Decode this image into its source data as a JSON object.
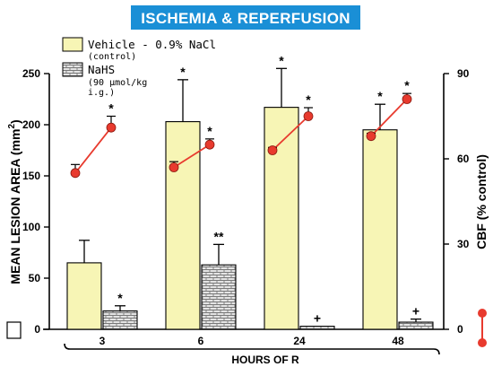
{
  "chart_data": {
    "type": "bar",
    "title": "ISCHEMIA & REPERFUSION",
    "xlabel": "HOURS OF R",
    "ylabel": "MEAN LESION AREA (mm²)",
    "y2label": "CBF (% control)",
    "categories": [
      "3",
      "6",
      "24",
      "48"
    ],
    "ylim": [
      0,
      250
    ],
    "yticks": [
      0,
      50,
      100,
      150,
      200,
      250
    ],
    "y2lim": [
      0,
      90
    ],
    "y2ticks": [
      0,
      30,
      60,
      90
    ],
    "series": [
      {
        "name": "Vehicle - 0.9% NaCl",
        "subname": "(control)",
        "kind": "bar",
        "pattern": "solid",
        "color": "#f7f5b5",
        "values": [
          65,
          203,
          217,
          195
        ],
        "errors": [
          22,
          41,
          38,
          25
        ],
        "annotations": [
          "",
          "*",
          "*",
          "*"
        ]
      },
      {
        "name": "NaHS",
        "subname_lines": [
          "(90 µmol/kg",
          "i.g.)"
        ],
        "kind": "bar",
        "pattern": "brick",
        "color": "#e6e6e6",
        "values": [
          18,
          63,
          3,
          7
        ],
        "errors": [
          5,
          20,
          0,
          3
        ],
        "annotations": [
          "*",
          "**",
          "+",
          "+"
        ]
      },
      {
        "name": "CBF",
        "kind": "line",
        "axis": "y2",
        "color": "#e83a2e",
        "points": [
          {
            "category": "3",
            "start": 55,
            "start_err": 3,
            "end": 71,
            "end_err": 4,
            "end_annotation": "*"
          },
          {
            "category": "6",
            "start": 57,
            "start_err": 2,
            "end": 65,
            "end_err": 2,
            "end_annotation": "*"
          },
          {
            "category": "24",
            "start": 63,
            "start_err": 1,
            "end": 75,
            "end_err": 3,
            "end_annotation": "*"
          },
          {
            "category": "48",
            "start": 68,
            "start_err": 1,
            "end": 81,
            "end_err": 2,
            "end_annotation": "*"
          }
        ]
      }
    ],
    "grid": false,
    "legend_position": "top-left"
  }
}
